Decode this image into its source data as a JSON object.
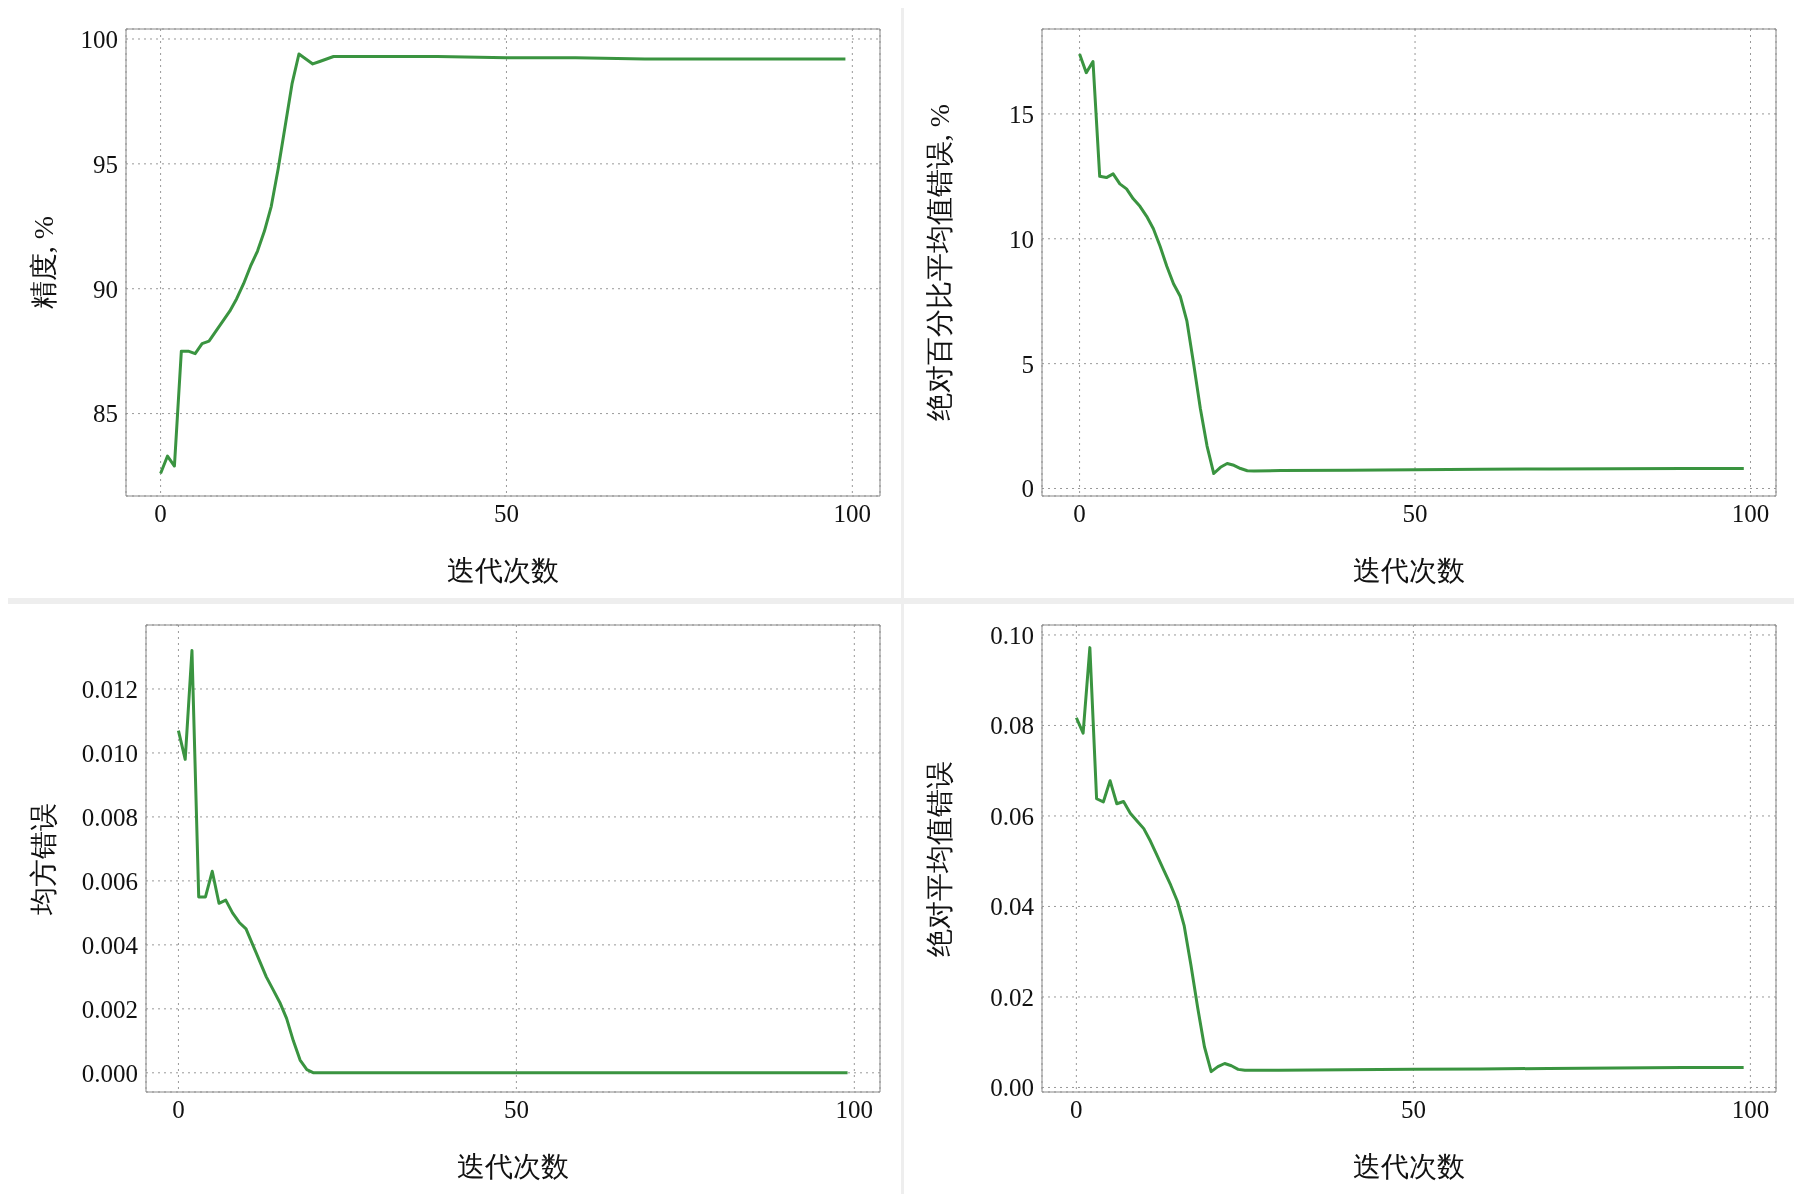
{
  "chart_data": [
    {
      "type": "line",
      "xlabel": "迭代次数",
      "ylabel": "精度, %",
      "color": "#3a9440",
      "grid": true,
      "xlim": [
        -5,
        104
      ],
      "ylim": [
        81.7,
        100.4
      ],
      "xticks": [
        0,
        50,
        100
      ],
      "yticks": [
        85,
        90,
        95,
        100
      ],
      "x": [
        0,
        1,
        2,
        3,
        4,
        5,
        6,
        7,
        8,
        9,
        10,
        11,
        12,
        13,
        14,
        15,
        16,
        17,
        18,
        19,
        20,
        21,
        22,
        23,
        24,
        25,
        26,
        30,
        40,
        50,
        60,
        70,
        80,
        90,
        99
      ],
      "values": [
        82.6,
        83.3,
        82.9,
        87.5,
        87.5,
        87.4,
        87.8,
        87.9,
        88.3,
        88.7,
        89.1,
        89.6,
        90.2,
        90.9,
        91.5,
        92.3,
        93.3,
        94.8,
        96.5,
        98.2,
        99.4,
        99.2,
        99.0,
        99.1,
        99.2,
        99.3,
        99.3,
        99.3,
        99.3,
        99.25,
        99.25,
        99.2,
        99.2,
        99.2,
        99.2
      ]
    },
    {
      "type": "line",
      "xlabel": "迭代次数",
      "ylabel": "绝对百分比平均值错误, %",
      "color": "#3a9440",
      "grid": true,
      "xlim": [
        -5.6,
        103.8
      ],
      "ylim": [
        -0.3,
        18.4
      ],
      "xticks": [
        0,
        50,
        100
      ],
      "yticks": [
        0,
        5,
        10,
        15
      ],
      "x": [
        0,
        1,
        2,
        3,
        4,
        5,
        6,
        7,
        8,
        9,
        10,
        11,
        12,
        13,
        14,
        15,
        16,
        17,
        18,
        19,
        20,
        21,
        22,
        23,
        24,
        25,
        26,
        30,
        40,
        50,
        60,
        70,
        80,
        90,
        99
      ],
      "values": [
        17.4,
        16.65,
        17.1,
        12.5,
        12.45,
        12.6,
        12.2,
        12.0,
        11.6,
        11.3,
        10.9,
        10.4,
        9.7,
        8.9,
        8.2,
        7.7,
        6.7,
        5.0,
        3.2,
        1.7,
        0.6,
        0.85,
        1.0,
        0.93,
        0.8,
        0.71,
        0.7,
        0.72,
        0.73,
        0.75,
        0.77,
        0.78,
        0.79,
        0.8,
        0.8
      ]
    },
    {
      "type": "line",
      "xlabel": "迭代次数",
      "ylabel": "均方错误",
      "color": "#3a9440",
      "grid": true,
      "xlim": [
        -4.8,
        103.8
      ],
      "ylim": [
        -0.0006,
        0.014
      ],
      "xticks": [
        0,
        50,
        100
      ],
      "yticks": [
        {
          "value": 0,
          "label": "0.000"
        },
        {
          "value": 0.002,
          "label": "0.002"
        },
        {
          "value": 0.004,
          "label": "0.004"
        },
        {
          "value": 0.006,
          "label": "0.006"
        },
        {
          "value": 0.008,
          "label": "0.008"
        },
        {
          "value": 0.01,
          "label": "0.010"
        },
        {
          "value": 0.012,
          "label": "0.012"
        }
      ],
      "x": [
        0,
        1,
        2,
        3,
        4,
        5,
        6,
        7,
        8,
        9,
        10,
        11,
        12,
        13,
        14,
        15,
        16,
        17,
        18,
        19,
        20,
        21,
        22,
        23,
        24,
        25,
        26,
        30,
        40,
        50,
        60,
        70,
        80,
        90,
        99
      ],
      "values": [
        0.0107,
        0.0098,
        0.0132,
        0.0055,
        0.0055,
        0.0063,
        0.0053,
        0.0054,
        0.005,
        0.0047,
        0.0045,
        0.004,
        0.0035,
        0.003,
        0.0026,
        0.0022,
        0.0017,
        0.001,
        0.0004,
        0.0001,
        0,
        0,
        0,
        0,
        0,
        0,
        0,
        0,
        0,
        0,
        0,
        0,
        0,
        0,
        0
      ]
    },
    {
      "type": "line",
      "xlabel": "迭代次数",
      "ylabel": "绝对平均值错误",
      "color": "#3a9440",
      "grid": true,
      "xlim": [
        -5.1,
        103.8
      ],
      "ylim": [
        -0.001,
        0.1022
      ],
      "xticks": [
        0,
        50,
        100
      ],
      "yticks": [
        {
          "value": 0,
          "label": "0.00"
        },
        {
          "value": 0.02,
          "label": "0.02"
        },
        {
          "value": 0.04,
          "label": "0.04"
        },
        {
          "value": 0.06,
          "label": "0.06"
        },
        {
          "value": 0.08,
          "label": "0.08"
        },
        {
          "value": 0.1,
          "label": "0.10"
        }
      ],
      "x": [
        0,
        1,
        2,
        3,
        4,
        5,
        6,
        7,
        8,
        9,
        10,
        11,
        12,
        13,
        14,
        15,
        16,
        17,
        18,
        19,
        20,
        21,
        22,
        23,
        24,
        25,
        26,
        30,
        40,
        50,
        60,
        70,
        80,
        90,
        99
      ],
      "values": [
        0.0817,
        0.0783,
        0.0972,
        0.0638,
        0.0631,
        0.0678,
        0.0627,
        0.0632,
        0.0606,
        0.0589,
        0.0572,
        0.0544,
        0.0512,
        0.0479,
        0.0447,
        0.0411,
        0.0357,
        0.027,
        0.0176,
        0.009,
        0.0035,
        0.0046,
        0.0053,
        0.0048,
        0.004,
        0.0038,
        0.0038,
        0.0038,
        0.0039,
        0.004,
        0.0041,
        0.0042,
        0.0043,
        0.0044,
        0.0044
      ]
    }
  ]
}
